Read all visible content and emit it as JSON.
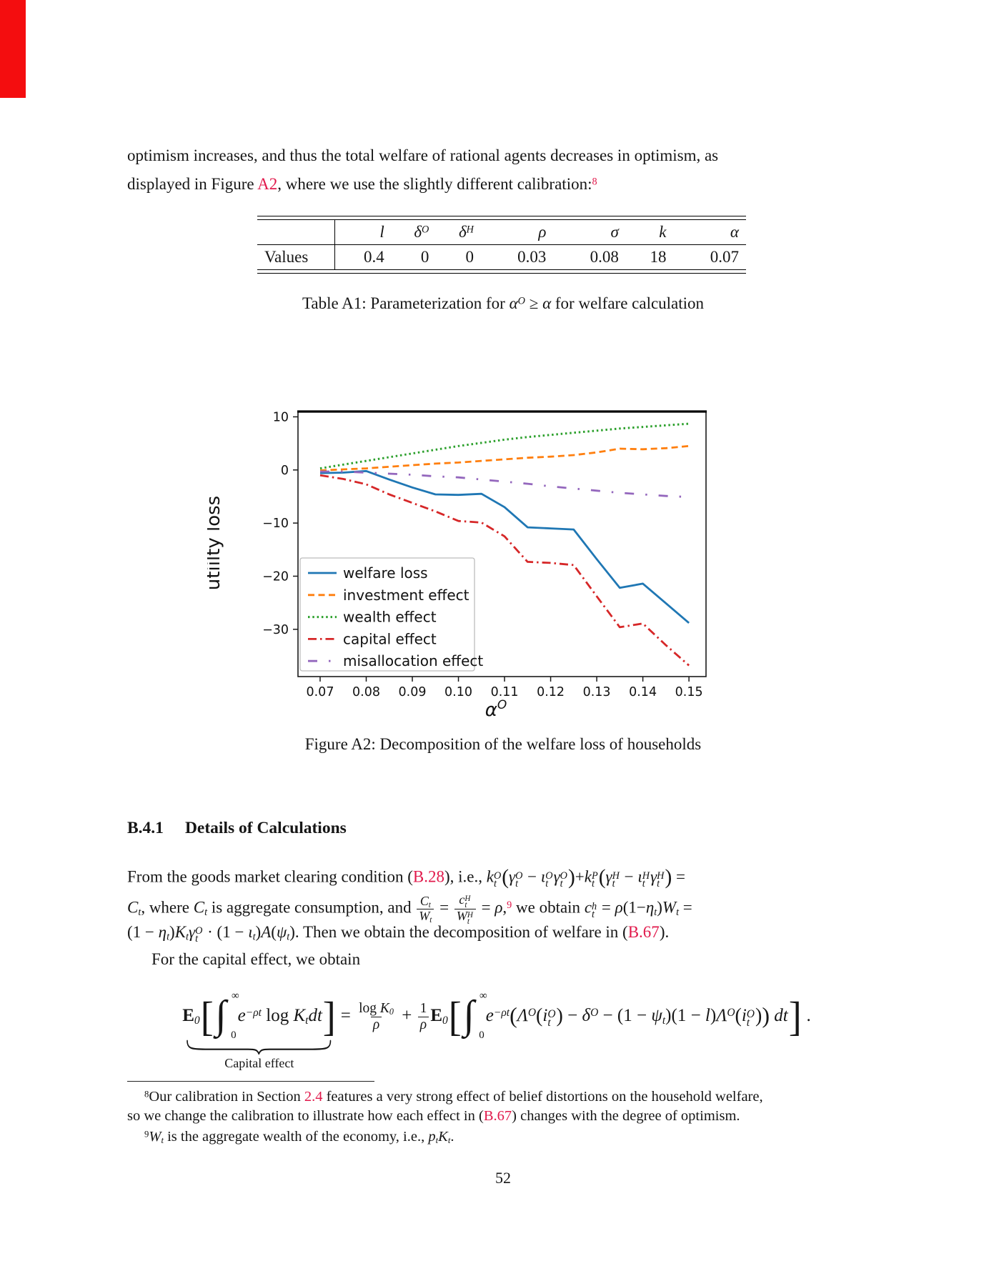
{
  "accent_color": "#e1194b",
  "artifact_color": "#f40d0f",
  "page_number": "52",
  "intro": {
    "line1": "optimism increases, and thus the total welfare of rational agents decreases in optimism, as",
    "line2": [
      {
        "t": "txt",
        "v": "displayed in Figure "
      },
      {
        "t": "link",
        "v": "A2"
      },
      {
        "t": "txt",
        "v": ", where we use the slightly different calibration:"
      },
      {
        "t": "supref",
        "v": "8"
      }
    ]
  },
  "table_a1": {
    "row_label": "Values",
    "headers": [
      {
        "base": "l",
        "sup": ""
      },
      {
        "base": "δ",
        "sup": "O"
      },
      {
        "base": "δ",
        "sup": "H"
      },
      {
        "base": "ρ",
        "sup": ""
      },
      {
        "base": "σ",
        "sup": ""
      },
      {
        "base": "k",
        "sup": ""
      },
      {
        "base": "α",
        "sup": ""
      }
    ],
    "values": [
      "0.4",
      "0",
      "0",
      "0.03",
      "0.08",
      "18",
      "0.07"
    ],
    "caption": [
      {
        "t": "txt",
        "v": "Table A1: Parameterization for "
      },
      {
        "t": "it",
        "v": "α"
      },
      {
        "t": "sup",
        "v": "O"
      },
      {
        "t": "txt",
        "v": " ≥ "
      },
      {
        "t": "it",
        "v": "α"
      },
      {
        "t": "txt",
        "v": " for welfare calculation"
      }
    ]
  },
  "figure": {
    "caption": "Figure A2: Decomposition of the welfare loss of households"
  },
  "section": {
    "number": "B.4.1",
    "title": "Details of Calculations"
  },
  "body": {
    "line1": [
      {
        "t": "txt",
        "v": "From the goods market clearing condition ("
      },
      {
        "t": "link",
        "v": "B.28"
      },
      {
        "t": "txt",
        "v": "), i.e., "
      },
      {
        "t": "it",
        "v": "k"
      },
      {
        "t": "ss",
        "sup": "O",
        "sub": "t"
      },
      {
        "t": "big",
        "v": "("
      },
      {
        "t": "it",
        "v": "γ"
      },
      {
        "t": "ss",
        "sup": "O",
        "sub": "t"
      },
      {
        "t": "txt",
        "v": " − "
      },
      {
        "t": "it",
        "v": "ι"
      },
      {
        "t": "ss",
        "sup": "O",
        "sub": "t"
      },
      {
        "t": "it",
        "v": "γ"
      },
      {
        "t": "ss",
        "sup": "O",
        "sub": "t"
      },
      {
        "t": "big",
        "v": ")"
      },
      {
        "t": "txt",
        "v": "+"
      },
      {
        "t": "it",
        "v": "k"
      },
      {
        "t": "ss",
        "sup": "P",
        "sub": "t"
      },
      {
        "t": "big",
        "v": "("
      },
      {
        "t": "it",
        "v": "γ"
      },
      {
        "t": "ss",
        "sup": "H",
        "sub": "t"
      },
      {
        "t": "txt",
        "v": " − "
      },
      {
        "t": "it",
        "v": "ι"
      },
      {
        "t": "ss",
        "sup": "H",
        "sub": "t"
      },
      {
        "t": "it",
        "v": "γ"
      },
      {
        "t": "ss",
        "sup": "H",
        "sub": "t"
      },
      {
        "t": "big",
        "v": ")"
      },
      {
        "t": "txt",
        "v": " ="
      }
    ],
    "line2": [
      {
        "t": "it",
        "v": "C"
      },
      {
        "t": "sub",
        "v": "t"
      },
      {
        "t": "txt",
        "v": ", where "
      },
      {
        "t": "it",
        "v": "C"
      },
      {
        "t": "sub",
        "v": "t"
      },
      {
        "t": "txt",
        "v": " is aggregate consumption, and "
      },
      {
        "t": "frac",
        "num": [
          {
            "t": "it",
            "v": "C"
          },
          {
            "t": "sub",
            "v": "t"
          }
        ],
        "den": [
          {
            "t": "it",
            "v": "W"
          },
          {
            "t": "sub",
            "v": "t"
          }
        ]
      },
      {
        "t": "txt",
        "v": " = "
      },
      {
        "t": "frac",
        "num": [
          {
            "t": "it",
            "v": "c"
          },
          {
            "t": "ss",
            "sup": "H",
            "sub": "t"
          }
        ],
        "den": [
          {
            "t": "it",
            "v": "W"
          },
          {
            "t": "ss",
            "sup": "H",
            "sub": "t"
          }
        ]
      },
      {
        "t": "txt",
        "v": " = "
      },
      {
        "t": "it",
        "v": "ρ"
      },
      {
        "t": "txt",
        "v": ","
      },
      {
        "t": "supref",
        "v": "9"
      },
      {
        "t": "txt",
        "v": " we obtain "
      },
      {
        "t": "it",
        "v": "c"
      },
      {
        "t": "ss",
        "sup": "h",
        "sub": "t"
      },
      {
        "t": "txt",
        "v": " = "
      },
      {
        "t": "it",
        "v": "ρ"
      },
      {
        "t": "txt",
        "v": "(1−"
      },
      {
        "t": "it",
        "v": "η"
      },
      {
        "t": "sub",
        "v": "t"
      },
      {
        "t": "txt",
        "v": ")"
      },
      {
        "t": "it",
        "v": "W"
      },
      {
        "t": "sub",
        "v": "t"
      },
      {
        "t": "txt",
        "v": " ="
      }
    ],
    "line3": [
      {
        "t": "txt",
        "v": "(1 − "
      },
      {
        "t": "it",
        "v": "η"
      },
      {
        "t": "sub",
        "v": "t"
      },
      {
        "t": "txt",
        "v": ")"
      },
      {
        "t": "it",
        "v": "K"
      },
      {
        "t": "sub",
        "v": "t"
      },
      {
        "t": "it",
        "v": "γ"
      },
      {
        "t": "ss",
        "sup": "O",
        "sub": "t"
      },
      {
        "t": "txt",
        "v": " · (1 − "
      },
      {
        "t": "it",
        "v": "ι"
      },
      {
        "t": "sub",
        "v": "t"
      },
      {
        "t": "txt",
        "v": ")"
      },
      {
        "t": "it",
        "v": "A"
      },
      {
        "t": "txt",
        "v": "("
      },
      {
        "t": "it",
        "v": "ψ"
      },
      {
        "t": "sub",
        "v": "t"
      },
      {
        "t": "txt",
        "v": "). Then we obtain the decomposition of welfare in ("
      },
      {
        "t": "link",
        "v": "B.67"
      },
      {
        "t": "txt",
        "v": ")."
      }
    ],
    "line4": "For the capital effect, we obtain"
  },
  "equation": {
    "lhs": [
      {
        "t": "bb",
        "v": "E"
      },
      {
        "t": "sub",
        "v": "0"
      },
      {
        "t": "brk",
        "v": "["
      },
      {
        "t": "int",
        "v": "∫",
        "sub": "0",
        "sup": "∞"
      },
      {
        "t": "it",
        "v": "e"
      },
      {
        "t": "sup",
        "v": "−ρt"
      },
      {
        "t": "rm",
        "v": " log "
      },
      {
        "t": "it",
        "v": "K"
      },
      {
        "t": "sub",
        "v": "t"
      },
      {
        "t": "it",
        "v": "dt"
      },
      {
        "t": "brk",
        "v": "]"
      }
    ],
    "rhs": [
      {
        "t": "txt",
        "v": " = "
      },
      {
        "t": "frac",
        "num": [
          {
            "t": "rm",
            "v": "log "
          },
          {
            "t": "it",
            "v": "K"
          },
          {
            "t": "sub",
            "v": "0"
          }
        ],
        "den": [
          {
            "t": "it",
            "v": "ρ"
          }
        ]
      },
      {
        "t": "txt",
        "v": " + "
      },
      {
        "t": "frac",
        "num": [
          {
            "t": "rm",
            "v": "1"
          }
        ],
        "den": [
          {
            "t": "it",
            "v": "ρ"
          }
        ]
      },
      {
        "t": "bb",
        "v": "E"
      },
      {
        "t": "sub",
        "v": "0"
      },
      {
        "t": "brk",
        "v": "["
      },
      {
        "t": "int",
        "v": "∫",
        "sub": "0",
        "sup": "∞"
      },
      {
        "t": "it",
        "v": "e"
      },
      {
        "t": "sup",
        "v": "−ρt"
      },
      {
        "t": "big",
        "v": "("
      },
      {
        "t": "it",
        "v": "Λ"
      },
      {
        "t": "sup",
        "v": "O"
      },
      {
        "t": "big2",
        "v": "("
      },
      {
        "t": "it",
        "v": "i"
      },
      {
        "t": "ss",
        "sup": "O",
        "sub": "t"
      },
      {
        "t": "big2",
        "v": ")"
      },
      {
        "t": "txt",
        "v": " − "
      },
      {
        "t": "it",
        "v": "δ"
      },
      {
        "t": "sup",
        "v": "O"
      },
      {
        "t": "txt",
        "v": " − (1 − "
      },
      {
        "t": "it",
        "v": "ψ"
      },
      {
        "t": "sub",
        "v": "t"
      },
      {
        "t": "txt",
        "v": ")(1 − "
      },
      {
        "t": "it",
        "v": "l"
      },
      {
        "t": "txt",
        "v": ")"
      },
      {
        "t": "it",
        "v": "Λ"
      },
      {
        "t": "sup",
        "v": "O"
      },
      {
        "t": "big2",
        "v": "("
      },
      {
        "t": "it",
        "v": "i"
      },
      {
        "t": "ss",
        "sup": "O",
        "sub": "t"
      },
      {
        "t": "big2",
        "v": ")"
      },
      {
        "t": "big",
        "v": ")"
      },
      {
        "t": "it",
        "v": " dt"
      },
      {
        "t": "brk",
        "v": "]"
      },
      {
        "t": "txt",
        "v": " ."
      }
    ],
    "brace_label": "Capital effect"
  },
  "footnotes": {
    "fn8_line1": [
      {
        "t": "supn",
        "v": "8"
      },
      {
        "t": "txt",
        "v": "Our calibration in Section "
      },
      {
        "t": "link",
        "v": "2.4"
      },
      {
        "t": "txt",
        "v": " features a very strong effect of belief distortions on the household welfare,"
      }
    ],
    "fn8_line2": [
      {
        "t": "txt",
        "v": "so we change the calibration to illustrate how each effect in ("
      },
      {
        "t": "link",
        "v": "B.67"
      },
      {
        "t": "txt",
        "v": ") changes with the degree of optimism."
      }
    ],
    "fn9": [
      {
        "t": "supn",
        "v": "9"
      },
      {
        "t": "it",
        "v": "W"
      },
      {
        "t": "sub",
        "v": "t"
      },
      {
        "t": "txt",
        "v": " is the aggregate wealth of the economy, i.e., "
      },
      {
        "t": "it",
        "v": "p"
      },
      {
        "t": "sub",
        "v": "t"
      },
      {
        "t": "it",
        "v": "K"
      },
      {
        "t": "sub",
        "v": "t"
      },
      {
        "t": "txt",
        "v": "."
      }
    ]
  },
  "chart_data": {
    "type": "line",
    "title": "",
    "xlabel_base": "α",
    "xlabel_sup": "O",
    "ylabel": "utiilty loss",
    "xlim": [
      0.0652,
      0.1537
    ],
    "ylim": [
      -38.9,
      11.0
    ],
    "grid": false,
    "legend_position": "lower left",
    "xticks": [
      0.07,
      0.08,
      0.09,
      0.1,
      0.11,
      0.12,
      0.13,
      0.14,
      0.15
    ],
    "xtick_labels": [
      "0.07",
      "0.08",
      "0.09",
      "0.10",
      "0.11",
      "0.12",
      "0.13",
      "0.14",
      "0.15"
    ],
    "yticks": [
      10,
      0,
      -10,
      -20,
      -30
    ],
    "ytick_labels": [
      "10",
      "0",
      "−10",
      "−20",
      "−30"
    ],
    "x": [
      0.07,
      0.075,
      0.08,
      0.085,
      0.09,
      0.095,
      0.1,
      0.105,
      0.11,
      0.115,
      0.12,
      0.125,
      0.13,
      0.135,
      0.14,
      0.145,
      0.15
    ],
    "series": [
      {
        "name": "welfare loss",
        "color": "#1f77b4",
        "dash": "none",
        "width": 2.8,
        "values": [
          -0.6,
          -0.5,
          -0.2,
          -1.8,
          -3.3,
          -4.6,
          -4.7,
          -4.5,
          -7.0,
          -10.8,
          -11.0,
          -11.2,
          -16.8,
          -22.2,
          -21.4,
          -25.1,
          -28.8
        ]
      },
      {
        "name": "investment effect",
        "color": "#ff7f0e",
        "dash": "9 5.5",
        "width": 2.8,
        "values": [
          -0.1,
          0.1,
          0.3,
          0.6,
          0.9,
          1.2,
          1.4,
          1.7,
          2.0,
          2.3,
          2.5,
          2.8,
          3.3,
          4.0,
          3.9,
          4.1,
          4.5
        ]
      },
      {
        "name": "wealth effect",
        "color": "#2ca02c",
        "dash": "2.5 3.8",
        "width": 3,
        "values": [
          0.3,
          1.0,
          1.7,
          2.4,
          3.1,
          3.8,
          4.5,
          5.1,
          5.7,
          6.2,
          6.6,
          7.0,
          7.4,
          7.8,
          8.1,
          8.4,
          8.7
        ]
      },
      {
        "name": "capital effect",
        "color": "#d62728",
        "dash": "12 5 2.5 5",
        "width": 2.8,
        "values": [
          -1.0,
          -1.7,
          -2.7,
          -4.6,
          -6.2,
          -7.8,
          -9.6,
          -9.9,
          -12.5,
          -17.3,
          -17.5,
          -17.9,
          -23.8,
          -29.6,
          -28.9,
          -33.0,
          -36.8
        ]
      },
      {
        "name": "misallocation effect",
        "color": "#9467bd",
        "dash": "13 16 2.5 16",
        "width": 2.8,
        "values": [
          -0.3,
          -0.3,
          -0.5,
          -0.7,
          -0.9,
          -1.2,
          -1.4,
          -1.8,
          -2.2,
          -2.6,
          -3.1,
          -3.5,
          -3.9,
          -4.3,
          -4.6,
          -4.9,
          -5.1
        ]
      }
    ]
  }
}
